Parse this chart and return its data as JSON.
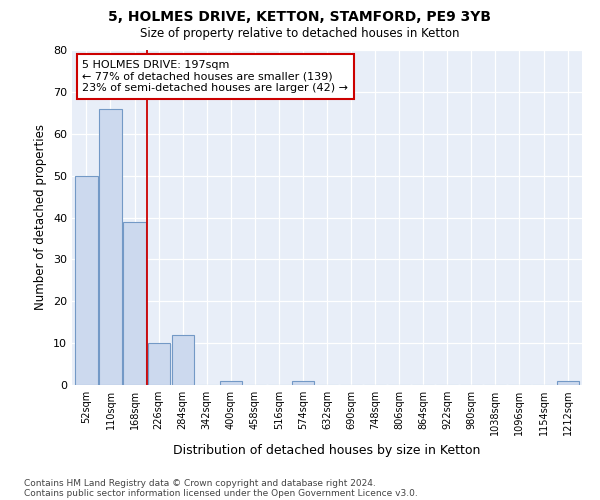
{
  "title1": "5, HOLMES DRIVE, KETTON, STAMFORD, PE9 3YB",
  "title2": "Size of property relative to detached houses in Ketton",
  "xlabel": "Distribution of detached houses by size in Ketton",
  "ylabel": "Number of detached properties",
  "categories": [
    "52sqm",
    "110sqm",
    "168sqm",
    "226sqm",
    "284sqm",
    "342sqm",
    "400sqm",
    "458sqm",
    "516sqm",
    "574sqm",
    "632sqm",
    "690sqm",
    "748sqm",
    "806sqm",
    "864sqm",
    "922sqm",
    "980sqm",
    "1038sqm",
    "1096sqm",
    "1154sqm",
    "1212sqm"
  ],
  "values": [
    50,
    66,
    39,
    10,
    12,
    0,
    1,
    0,
    0,
    1,
    0,
    0,
    0,
    0,
    0,
    0,
    0,
    0,
    0,
    0,
    1
  ],
  "bar_color": "#ccd9ee",
  "bar_edge_color": "#7399c6",
  "vline_color": "#cc0000",
  "annotation_text": "5 HOLMES DRIVE: 197sqm\n← 77% of detached houses are smaller (139)\n23% of semi-detached houses are larger (42) →",
  "annotation_box_color": "#ffffff",
  "annotation_box_edge": "#cc0000",
  "ylim": [
    0,
    80
  ],
  "yticks": [
    0,
    10,
    20,
    30,
    40,
    50,
    60,
    70,
    80
  ],
  "footer1": "Contains HM Land Registry data © Crown copyright and database right 2024.",
  "footer2": "Contains public sector information licensed under the Open Government Licence v3.0.",
  "bg_color": "#e8eef8"
}
